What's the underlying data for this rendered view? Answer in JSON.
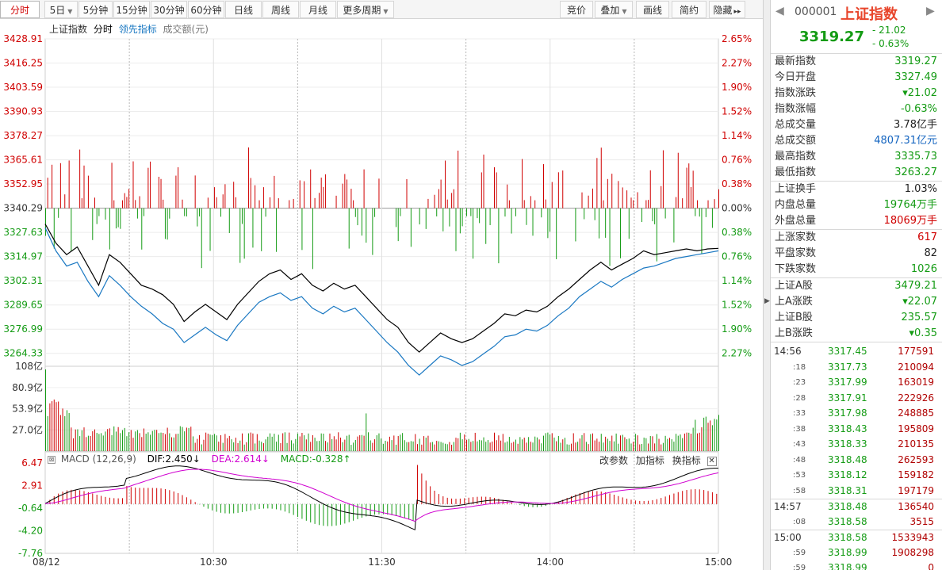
{
  "toolbar": {
    "periods": [
      {
        "label": "分时",
        "active": true
      },
      {
        "label": "5日",
        "dropdown": true
      },
      {
        "label": "5分钟"
      },
      {
        "label": "15分钟"
      },
      {
        "label": "30分钟"
      },
      {
        "label": "60分钟"
      },
      {
        "label": "日线"
      },
      {
        "label": "周线"
      },
      {
        "label": "月线"
      },
      {
        "label": "更多周期",
        "dropdown": true
      }
    ],
    "tools": [
      {
        "label": "竞价"
      },
      {
        "label": "叠加",
        "dropdown": true
      },
      {
        "label": "画线"
      },
      {
        "label": "简约"
      },
      {
        "label": "隐藏",
        "suffix": "▸▸"
      }
    ]
  },
  "legend": {
    "name": "上证指数",
    "mode": "分时",
    "lead": "领先指标",
    "amount": "成交额(元)"
  },
  "macd_legend": {
    "title": "MACD (12,26,9)",
    "dif": "DIF:2.450↓",
    "dea": "DEA:2.614↓",
    "macd": "MACD:-0.328↑",
    "actions": [
      "改参数",
      "加指标",
      "换指标"
    ]
  },
  "colors": {
    "up": "#d00000",
    "down": "#149b14",
    "price_line": "#000000",
    "lead_line": "#1a78c2",
    "dif": "#000000",
    "dea": "#d000d0"
  },
  "chart_data": [
    {
      "type": "line",
      "name": "price",
      "x_labels": [
        "08/12",
        "10:30",
        "11:30",
        "14:00",
        "15:00"
      ],
      "price_ticks": [
        "3428.91",
        "3416.25",
        "3403.59",
        "3390.93",
        "3378.27",
        "3365.61",
        "3352.95",
        "3340.29",
        "3327.63",
        "3314.97",
        "3302.31",
        "3289.65",
        "3276.99",
        "3264.33"
      ],
      "pct_ticks": [
        "2.65%",
        "2.27%",
        "1.90%",
        "1.52%",
        "1.14%",
        "0.76%",
        "0.38%",
        "0.00%",
        "0.38%",
        "0.76%",
        "1.14%",
        "1.52%",
        "1.90%",
        "2.27%"
      ],
      "ylim": [
        3258.0,
        3428.91
      ],
      "base": 3340.29,
      "series": [
        {
          "name": "上证指数",
          "points": [
            [
              0,
              3332
            ],
            [
              5,
              3322
            ],
            [
              10,
              3316
            ],
            [
              15,
              3320
            ],
            [
              20,
              3310
            ],
            [
              25,
              3300
            ],
            [
              30,
              3316
            ],
            [
              35,
              3312
            ],
            [
              40,
              3306
            ],
            [
              45,
              3300
            ],
            [
              50,
              3298
            ],
            [
              55,
              3295
            ],
            [
              60,
              3290
            ],
            [
              65,
              3281
            ],
            [
              70,
              3286
            ],
            [
              75,
              3290
            ],
            [
              80,
              3286
            ],
            [
              85,
              3282
            ],
            [
              90,
              3290
            ],
            [
              95,
              3296
            ],
            [
              100,
              3302
            ],
            [
              105,
              3306
            ],
            [
              110,
              3308
            ],
            [
              115,
              3303
            ],
            [
              120,
              3306
            ],
            [
              125,
              3300
            ],
            [
              130,
              3297
            ],
            [
              135,
              3301
            ],
            [
              140,
              3298
            ],
            [
              145,
              3300
            ],
            [
              150,
              3294
            ],
            [
              155,
              3288
            ],
            [
              160,
              3282
            ],
            [
              165,
              3278
            ],
            [
              170,
              3270
            ],
            [
              175,
              3265
            ],
            [
              180,
              3270
            ],
            [
              185,
              3275
            ],
            [
              190,
              3272
            ],
            [
              195,
              3270
            ],
            [
              200,
              3272
            ],
            [
              205,
              3276
            ],
            [
              210,
              3280
            ],
            [
              215,
              3285
            ],
            [
              220,
              3284
            ],
            [
              225,
              3287
            ],
            [
              230,
              3286
            ],
            [
              235,
              3289
            ],
            [
              240,
              3294
            ],
            [
              245,
              3298
            ],
            [
              250,
              3303
            ],
            [
              255,
              3308
            ],
            [
              260,
              3312
            ],
            [
              265,
              3308
            ],
            [
              270,
              3311
            ],
            [
              275,
              3314
            ],
            [
              280,
              3318
            ],
            [
              285,
              3316
            ],
            [
              290,
              3317
            ],
            [
              295,
              3318
            ],
            [
              300,
              3319
            ],
            [
              305,
              3318
            ],
            [
              310,
              3319
            ],
            [
              315,
              3319.27
            ]
          ]
        },
        {
          "name": "领先指标",
          "points": [
            [
              0,
              3330
            ],
            [
              5,
              3318
            ],
            [
              10,
              3310
            ],
            [
              15,
              3312
            ],
            [
              20,
              3302
            ],
            [
              25,
              3294
            ],
            [
              30,
              3305
            ],
            [
              35,
              3300
            ],
            [
              40,
              3294
            ],
            [
              45,
              3289
            ],
            [
              50,
              3285
            ],
            [
              55,
              3280
            ],
            [
              60,
              3277
            ],
            [
              65,
              3270
            ],
            [
              70,
              3274
            ],
            [
              75,
              3278
            ],
            [
              80,
              3274
            ],
            [
              85,
              3271
            ],
            [
              90,
              3279
            ],
            [
              95,
              3285
            ],
            [
              100,
              3291
            ],
            [
              105,
              3294
            ],
            [
              110,
              3296
            ],
            [
              115,
              3292
            ],
            [
              120,
              3294
            ],
            [
              125,
              3288
            ],
            [
              130,
              3285
            ],
            [
              135,
              3289
            ],
            [
              140,
              3286
            ],
            [
              145,
              3288
            ],
            [
              150,
              3282
            ],
            [
              155,
              3276
            ],
            [
              160,
              3270
            ],
            [
              165,
              3265
            ],
            [
              170,
              3258
            ],
            [
              175,
              3253
            ],
            [
              180,
              3258
            ],
            [
              185,
              3263
            ],
            [
              190,
              3261
            ],
            [
              195,
              3258
            ],
            [
              200,
              3260
            ],
            [
              205,
              3264
            ],
            [
              210,
              3268
            ],
            [
              215,
              3273
            ],
            [
              220,
              3274
            ],
            [
              225,
              3277
            ],
            [
              230,
              3276
            ],
            [
              235,
              3279
            ],
            [
              240,
              3284
            ],
            [
              245,
              3288
            ],
            [
              250,
              3294
            ],
            [
              255,
              3298
            ],
            [
              260,
              3302
            ],
            [
              265,
              3299
            ],
            [
              270,
              3303
            ],
            [
              275,
              3306
            ],
            [
              280,
              3309
            ],
            [
              285,
              3310
            ],
            [
              290,
              3312
            ],
            [
              295,
              3314
            ],
            [
              300,
              3315
            ],
            [
              305,
              3316
            ],
            [
              310,
              3317
            ],
            [
              315,
              3318
            ]
          ]
        }
      ]
    },
    {
      "type": "bar",
      "name": "volume",
      "y_ticks": [
        "108亿",
        "80.9亿",
        "53.9亿",
        "27.0亿"
      ],
      "ylim": [
        0,
        108
      ],
      "seed": 7
    },
    {
      "type": "bar",
      "name": "macd",
      "y_ticks": [
        "6.47",
        "2.91",
        "-0.64",
        "-4.20",
        "-7.76"
      ],
      "ylim": [
        -7.76,
        6.47
      ]
    }
  ],
  "panel": {
    "code": "000001",
    "name": "上证指数",
    "price": "3319.27",
    "change": "- 21.02",
    "change_pct": "- 0.63%",
    "sections": [
      [
        {
          "k": "最新指数",
          "v": "3319.27",
          "c": "g"
        },
        {
          "k": "今日开盘",
          "v": "3327.49",
          "c": "g"
        },
        {
          "k": "指数涨跌",
          "v": "▾21.02",
          "c": "g"
        },
        {
          "k": "指数涨幅",
          "v": "-0.63%",
          "c": "g"
        },
        {
          "k": "总成交量",
          "v": "3.78亿手",
          "c": "k2"
        },
        {
          "k": "总成交额",
          "v": "4807.31亿元",
          "c": "b"
        },
        {
          "k": "最高指数",
          "v": "3335.73",
          "c": "g"
        },
        {
          "k": "最低指数",
          "v": "3263.27",
          "c": "g"
        }
      ],
      [
        {
          "k": "上证换手",
          "v": "1.03%",
          "c": "k2"
        },
        {
          "k": "内盘总量",
          "v": "19764万手",
          "c": "g"
        },
        {
          "k": "外盘总量",
          "v": "18069万手",
          "c": "r"
        }
      ],
      [
        {
          "k": "上涨家数",
          "v": "617",
          "c": "r"
        },
        {
          "k": "平盘家数",
          "v": "82",
          "c": "k2"
        },
        {
          "k": "下跌家数",
          "v": "1026",
          "c": "g"
        }
      ],
      [
        {
          "k": "上证A股",
          "v": "3479.21",
          "c": "g"
        },
        {
          "k": "上A涨跌",
          "v": "▾22.07",
          "c": "g"
        },
        {
          "k": "上证B股",
          "v": "235.57",
          "c": "g"
        },
        {
          "k": "上B涨跌",
          "v": "▾0.35",
          "c": "g"
        }
      ]
    ],
    "ticks": [
      {
        "t": "14:56",
        "p": "3317.45",
        "v": "177591",
        "sep": false,
        "big": true
      },
      {
        "t": ":18",
        "p": "3317.73",
        "v": "210094"
      },
      {
        "t": ":23",
        "p": "3317.99",
        "v": "163019"
      },
      {
        "t": ":28",
        "p": "3317.91",
        "v": "222926"
      },
      {
        "t": ":33",
        "p": "3317.98",
        "v": "248885"
      },
      {
        "t": ":38",
        "p": "3318.43",
        "v": "195809"
      },
      {
        "t": ":43",
        "p": "3318.33",
        "v": "210135"
      },
      {
        "t": ":48",
        "p": "3318.48",
        "v": "262593"
      },
      {
        "t": ":53",
        "p": "3318.12",
        "v": "159182"
      },
      {
        "t": ":58",
        "p": "3318.31",
        "v": "197179"
      },
      {
        "t": "14:57",
        "p": "3318.48",
        "v": "136540",
        "sep": true,
        "big": true
      },
      {
        "t": ":08",
        "p": "3318.58",
        "v": "3515"
      },
      {
        "t": "15:00",
        "p": "3318.58",
        "v": "1533943",
        "sep": true,
        "big": true
      },
      {
        "t": ":59",
        "p": "3318.99",
        "v": "1908298"
      },
      {
        "t": ":59",
        "p": "3318.99",
        "v": "0"
      }
    ]
  }
}
